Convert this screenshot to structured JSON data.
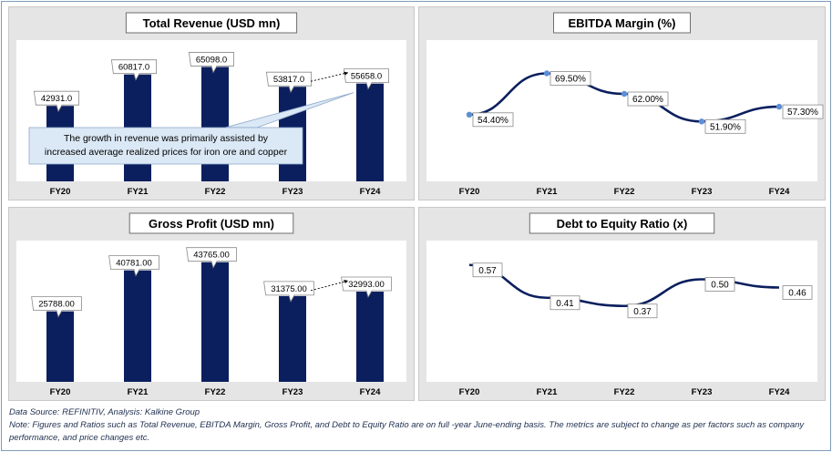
{
  "chart_data": [
    {
      "id": "revenue",
      "type": "bar",
      "title": "Total Revenue (USD mn)",
      "categories": [
        "FY20",
        "FY21",
        "FY22",
        "FY23",
        "FY24"
      ],
      "values": [
        42931.0,
        60817.0,
        65098.0,
        53817.0,
        55658.0
      ],
      "value_labels": [
        "42931.0",
        "60817.0",
        "65098.0",
        "53817.0",
        "55658.0"
      ],
      "ylim": [
        0,
        70000
      ],
      "annotation": "The growth in revenue was primarily assisted by increased average realized prices for iron ore and copper",
      "annotation_lines": [
        "The growth in revenue was primarily assisted by",
        "increased average realized prices for iron ore and copper"
      ],
      "color": "#0b1f5e"
    },
    {
      "id": "ebitda",
      "type": "line",
      "title": "EBITDA Margin (%)",
      "categories": [
        "FY20",
        "FY21",
        "FY22",
        "FY23",
        "FY24"
      ],
      "values": [
        54.4,
        69.5,
        62.0,
        51.9,
        57.3
      ],
      "value_labels": [
        "54.40%",
        "69.50%",
        "62.00%",
        "51.90%",
        "57.30%"
      ],
      "ylim": [
        30,
        75
      ],
      "color": "#0b1f5e",
      "marker_color": "#5b8fd6"
    },
    {
      "id": "gross",
      "type": "bar",
      "title": "Gross Profit (USD mn)",
      "categories": [
        "FY20",
        "FY21",
        "FY22",
        "FY23",
        "FY24"
      ],
      "values": [
        25788.0,
        40781.0,
        43765.0,
        31375.0,
        32993.0
      ],
      "value_labels": [
        "25788.00",
        "40781.00",
        "43765.00",
        "31375.00",
        "32993.00"
      ],
      "ylim": [
        0,
        45000
      ],
      "color": "#0b1f5e"
    },
    {
      "id": "debt",
      "type": "line",
      "title": "Debt to Equity Ratio (x)",
      "categories": [
        "FY20",
        "FY21",
        "FY22",
        "FY23",
        "FY24"
      ],
      "values": [
        0.57,
        0.41,
        0.37,
        0.5,
        0.46
      ],
      "value_labels": [
        "0.57",
        "0.41",
        "0.37",
        "0.50",
        "0.46"
      ],
      "ylim": [
        0,
        0.6
      ],
      "color": "#0b1f5e"
    }
  ],
  "footer": {
    "source": "Data Source: REFINITIV, Analysis: Kalkine Group",
    "note": "Note: Figures and Ratios such as Total Revenue, EBITDA Margin, Gross Profit, and Debt to Equity Ratio are on full -year June-ending basis. The metrics are subject to change as per factors such as company performance, and price changes etc."
  }
}
